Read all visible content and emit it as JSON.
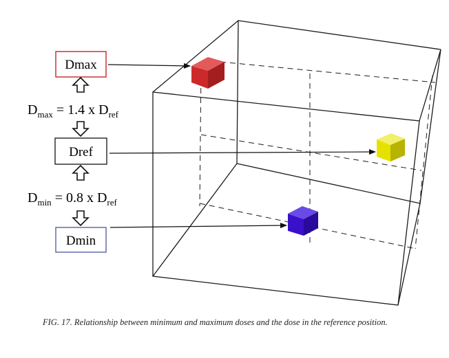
{
  "labels": {
    "dmax": "Dmax",
    "dref": "Dref",
    "dmin": "Dmin"
  },
  "equations": {
    "max": {
      "lhs": "D",
      "lhs_sub": "max",
      "mid": " = 1.4 x D",
      "rhs_sub": "ref"
    },
    "min": {
      "lhs": "D",
      "lhs_sub": "min",
      "mid": " = 0.8 x D",
      "rhs_sub": "ref"
    }
  },
  "caption": "FIG. 17.  Relationship between minimum and maximum doses and the dose in the reference position.",
  "colors": {
    "dmax_border": "#c8232a",
    "dref_border": "#222222",
    "dmin_border": "#5560a8",
    "cube_red": "#cc2a2a",
    "cube_yellow": "#e6e200",
    "cube_blue": "#3a10c8"
  },
  "icons": [
    "double-arrow-up-icon",
    "double-arrow-down-icon"
  ]
}
